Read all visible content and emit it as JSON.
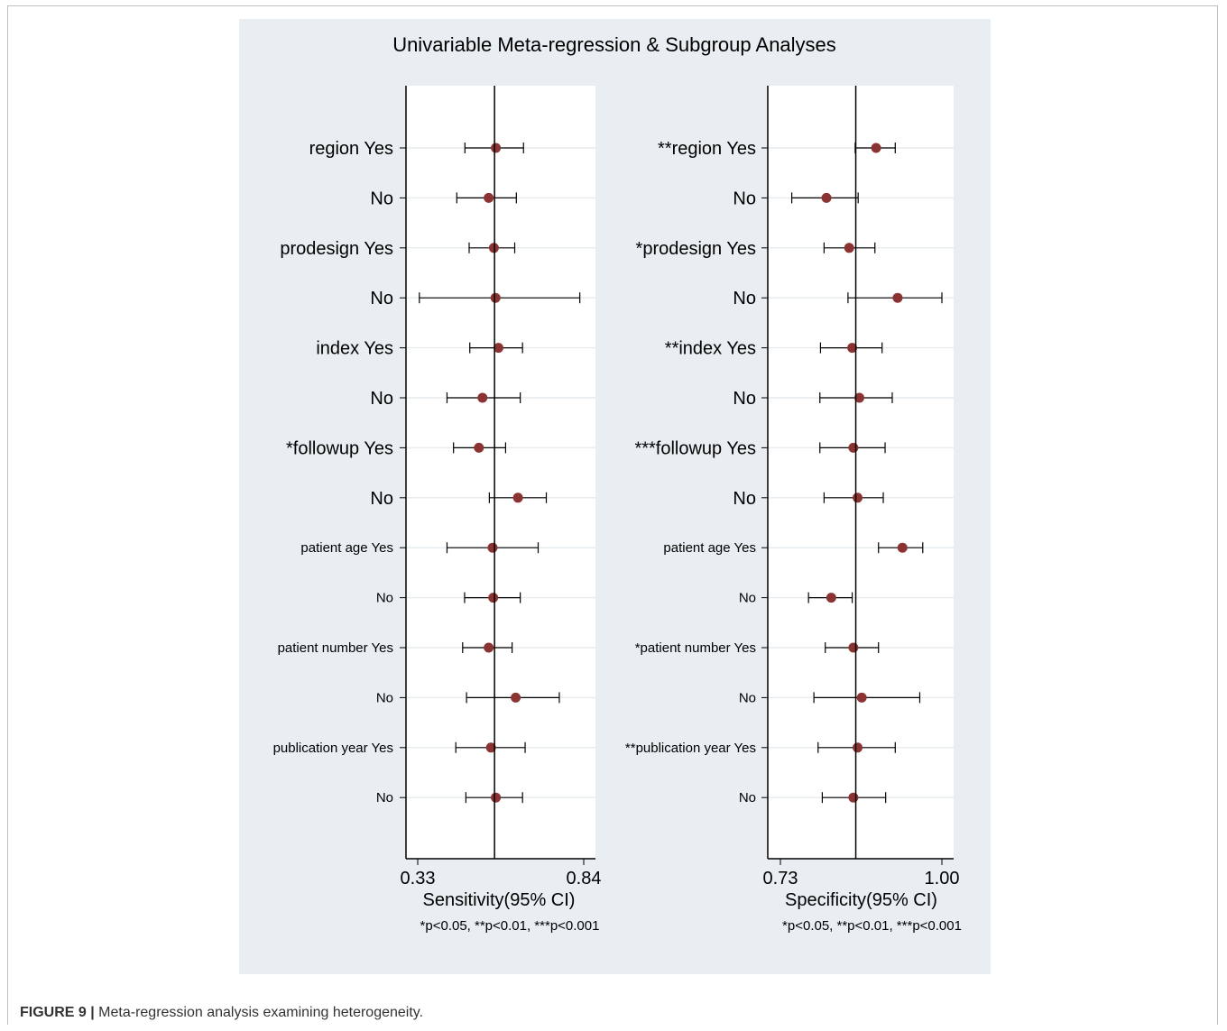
{
  "figure": {
    "title": "Univariable Meta-regression & Subgroup Analyses",
    "caption_label": "FIGURE 9 |",
    "caption_text": " Meta-regression analysis examining heterogeneity."
  },
  "colors": {
    "panel_bg": "#e8eef1",
    "plot_bg": "#ffffff",
    "marker": "#8b3333",
    "line": "#000000",
    "grid": "#e6ecef"
  },
  "chart_data": [
    {
      "type": "forest",
      "xlabel": "Sensitivity(95% CI)",
      "note": "*p<0.05, **p<0.01, ***p<0.001",
      "xticks": [
        0.33,
        0.84
      ],
      "xlim": [
        0.33,
        0.84
      ],
      "reference": 0.566,
      "categories": [
        "region Yes",
        "No",
        "prodesign Yes",
        "No",
        "index Yes",
        "No",
        "*followup Yes",
        "No",
        "patient age Yes",
        "No",
        "patient number Yes",
        "No",
        "publication year Yes",
        "No"
      ],
      "estimate": [
        0.57,
        0.548,
        0.564,
        0.569,
        0.578,
        0.529,
        0.518,
        0.638,
        0.56,
        0.562,
        0.548,
        0.631,
        0.555,
        0.57
      ],
      "lower": [
        0.475,
        0.45,
        0.488,
        0.335,
        0.49,
        0.42,
        0.44,
        0.55,
        0.42,
        0.474,
        0.468,
        0.48,
        0.447,
        0.478
      ],
      "upper": [
        0.655,
        0.633,
        0.628,
        0.828,
        0.652,
        0.645,
        0.6,
        0.725,
        0.7,
        0.645,
        0.62,
        0.765,
        0.66,
        0.652
      ]
    },
    {
      "type": "forest",
      "xlabel": "Specificity(95% CI)",
      "note": "*p<0.05, **p<0.01, ***p<0.001",
      "xticks": [
        0.73,
        1.0
      ],
      "xlim": [
        0.73,
        1.0
      ],
      "reference": 0.856,
      "categories": [
        "**region Yes",
        "No",
        "*prodesign Yes",
        "No",
        "**index Yes",
        "No",
        "***followup Yes",
        "No",
        "patient age Yes",
        "No",
        "*patient number Yes",
        "No",
        "**publication year Yes",
        "No"
      ],
      "estimate": [
        0.89,
        0.807,
        0.845,
        0.926,
        0.85,
        0.862,
        0.852,
        0.859,
        0.934,
        0.815,
        0.852,
        0.866,
        0.859,
        0.852
      ],
      "lower": [
        0.855,
        0.749,
        0.803,
        0.843,
        0.797,
        0.796,
        0.796,
        0.803,
        0.894,
        0.777,
        0.805,
        0.786,
        0.793,
        0.8
      ],
      "upper": [
        0.922,
        0.86,
        0.888,
        1.0,
        0.9,
        0.917,
        0.905,
        0.902,
        0.968,
        0.85,
        0.894,
        0.963,
        0.922,
        0.906
      ]
    }
  ]
}
